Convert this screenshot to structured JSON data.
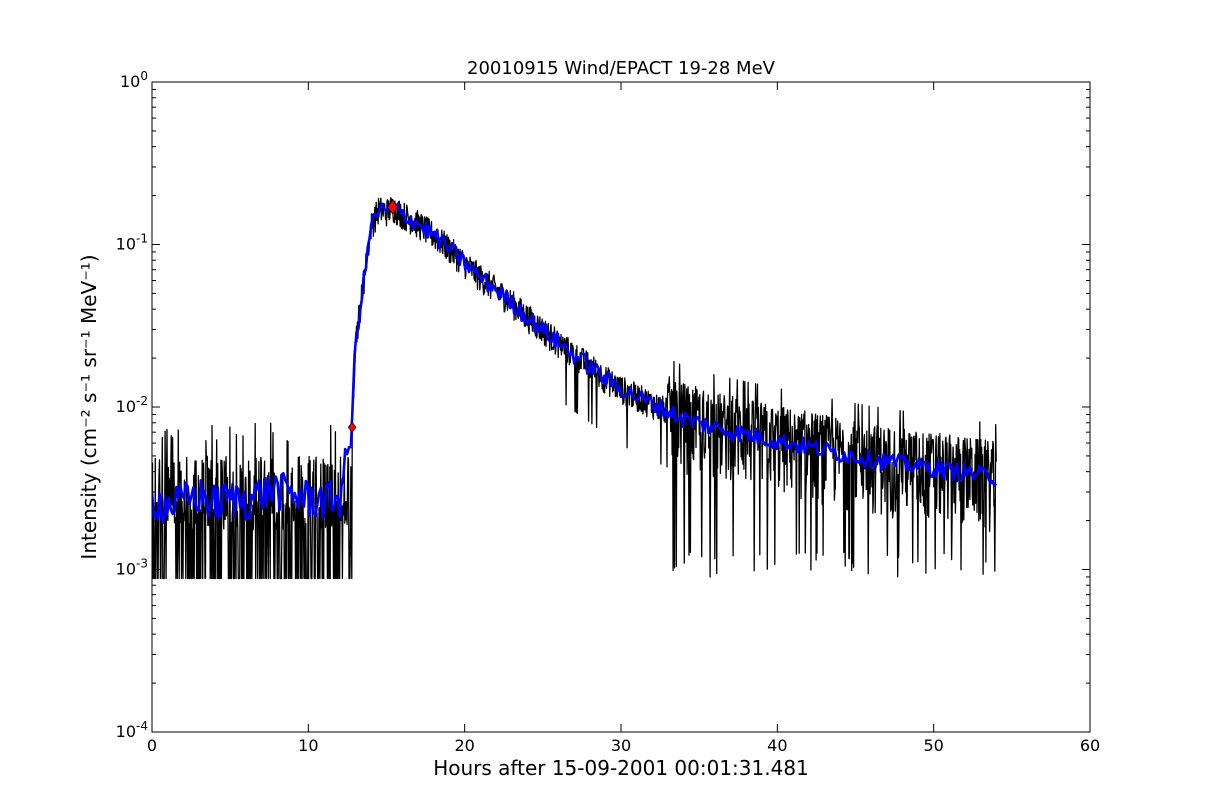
{
  "chart_data": {
    "type": "line",
    "title": "20010915 Wind/EPACT 19-28 MeV",
    "xlabel": "Hours after 15-09-2001 00:01:31.481",
    "ylabel": "Intensity (cm⁻² s⁻¹ sr⁻¹ MeV⁻¹)",
    "xlim": [
      0,
      60
    ],
    "ylim": [
      0.0001,
      1
    ],
    "yscale": "log",
    "grid": false,
    "x_ticks": [
      0,
      10,
      20,
      30,
      40,
      50,
      60
    ],
    "x_tick_labels": [
      "0",
      "10",
      "20",
      "30",
      "40",
      "50",
      "60"
    ],
    "y_ticks": [
      0.0001,
      0.001,
      0.01,
      0.1,
      1
    ],
    "y_tick_labels": [
      {
        "base": "10",
        "exp": "-4"
      },
      {
        "base": "10",
        "exp": "-3"
      },
      {
        "base": "10",
        "exp": "-2"
      },
      {
        "base": "10",
        "exp": "-1"
      },
      {
        "base": "10",
        "exp": "0"
      }
    ],
    "series": [
      {
        "style": "raw",
        "color": "#000000",
        "x": [
          0,
          1,
          2,
          3,
          4,
          5,
          6,
          7,
          8,
          9,
          10,
          11,
          12,
          12.8,
          13,
          13.5,
          14,
          14.5,
          15,
          15.4,
          16,
          17,
          18,
          19,
          20,
          21,
          22,
          23,
          24,
          25,
          26,
          27,
          28,
          29,
          30,
          32,
          34,
          36,
          38,
          40,
          42,
          44,
          46,
          48,
          50,
          52,
          54
        ],
        "values": [
          0.0028,
          0.0025,
          0.0027,
          0.0029,
          0.0026,
          0.0028,
          0.0027,
          0.003,
          0.0032,
          0.0029,
          0.0028,
          0.0027,
          0.0028,
          0.0075,
          0.025,
          0.055,
          0.13,
          0.165,
          0.16,
          0.17,
          0.155,
          0.135,
          0.115,
          0.095,
          0.077,
          0.063,
          0.053,
          0.044,
          0.036,
          0.03,
          0.025,
          0.021,
          0.018,
          0.015,
          0.013,
          0.0105,
          0.0085,
          0.0075,
          0.0068,
          0.0062,
          0.0057,
          0.0052,
          0.0048,
          0.0045,
          0.0042,
          0.004,
          0.0037
        ]
      },
      {
        "style": "smoothed",
        "color": "#0000ff",
        "x": [
          0,
          1,
          2,
          3,
          4,
          5,
          6,
          7,
          8,
          9,
          10,
          11,
          12,
          12.8,
          13,
          13.5,
          14,
          14.5,
          15,
          15.4,
          16,
          17,
          18,
          19,
          20,
          21,
          22,
          23,
          24,
          25,
          26,
          27,
          28,
          29,
          30,
          32,
          34,
          36,
          38,
          40,
          42,
          44,
          46,
          48,
          50,
          52,
          54
        ],
        "values": [
          0.0028,
          0.0025,
          0.0027,
          0.0029,
          0.0026,
          0.0028,
          0.0027,
          0.003,
          0.0032,
          0.0029,
          0.0028,
          0.0027,
          0.0028,
          0.0075,
          0.025,
          0.055,
          0.13,
          0.165,
          0.16,
          0.17,
          0.155,
          0.135,
          0.115,
          0.095,
          0.077,
          0.063,
          0.053,
          0.044,
          0.036,
          0.03,
          0.025,
          0.021,
          0.018,
          0.015,
          0.013,
          0.0105,
          0.0085,
          0.0075,
          0.0068,
          0.0062,
          0.0057,
          0.0052,
          0.0048,
          0.0045,
          0.0042,
          0.004,
          0.0037
        ]
      }
    ],
    "markers": [
      {
        "x": 12.8,
        "y": 0.0075,
        "shape": "diamond",
        "color": "#ff0000"
      },
      {
        "x": 15.4,
        "y": 0.17,
        "shape": "diamond",
        "color": "#ff0000"
      }
    ]
  }
}
